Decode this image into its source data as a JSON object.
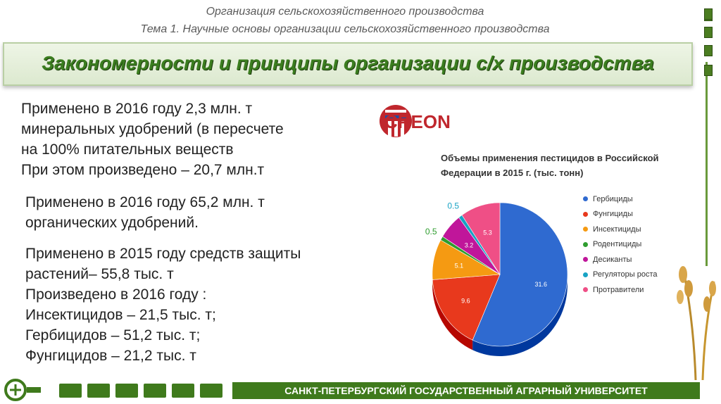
{
  "header": {
    "line1": "Организация сельскохозяйственного производства",
    "line2": "Тема 1. Научные основы организации сельскохозяйственного производства"
  },
  "title": "Закономерности и принципы организации с/х производства",
  "blocks": [
    {
      "lines": [
        "Применено  в 2016 году 2,3 млн. т",
        "минеральных удобрений (в пересчете",
        "на 100% питательных веществ",
        "При этом произведено – 20,7 млн.т"
      ]
    },
    {
      "lines": [
        "Применено  в 2016 году 65,2 млн. т",
        "органических удобрений."
      ]
    },
    {
      "lines": [
        "Применено в 2015 году средств защиты",
        "растений– 55,8 тыс. т",
        "Произведено в 2016 году :",
        "Инсектицидов – 21,5 тыс. т;",
        "Гербицидов – 51,2 тыс. т;",
        "Фунгицидов – 21,2 тыс. т"
      ]
    }
  ],
  "logo": {
    "text": "CREON"
  },
  "chart_data": {
    "type": "pie",
    "title": "Объемы применения пестицидов в Российской Федерации в 2015 г. (тыс. тонн)",
    "labels": [
      "Гербициды",
      "Фунгициды",
      "Инсектициды",
      "Родентициды",
      "Десиканты",
      "Регуляторы роста",
      "Протравители"
    ],
    "values": [
      31.6,
      9.6,
      5.1,
      0.5,
      3.2,
      0.5,
      5.3
    ],
    "value_labels": [
      "31.6",
      "9.6",
      "5.1",
      "0.5",
      "3.2",
      "0.5",
      "5.3"
    ],
    "colors": [
      "#2f6ad0",
      "#e8391d",
      "#f59a12",
      "#2f9d2f",
      "#c0169a",
      "#18a3c4",
      "#ef4f86"
    ],
    "legend_position": "right"
  },
  "footer": {
    "university": "САНКТ-ПЕТЕРБУРГСКИЙ ГОСУДАРСТВЕННЫЙ АГРАРНЫЙ УНИВЕРСИТЕТ"
  }
}
